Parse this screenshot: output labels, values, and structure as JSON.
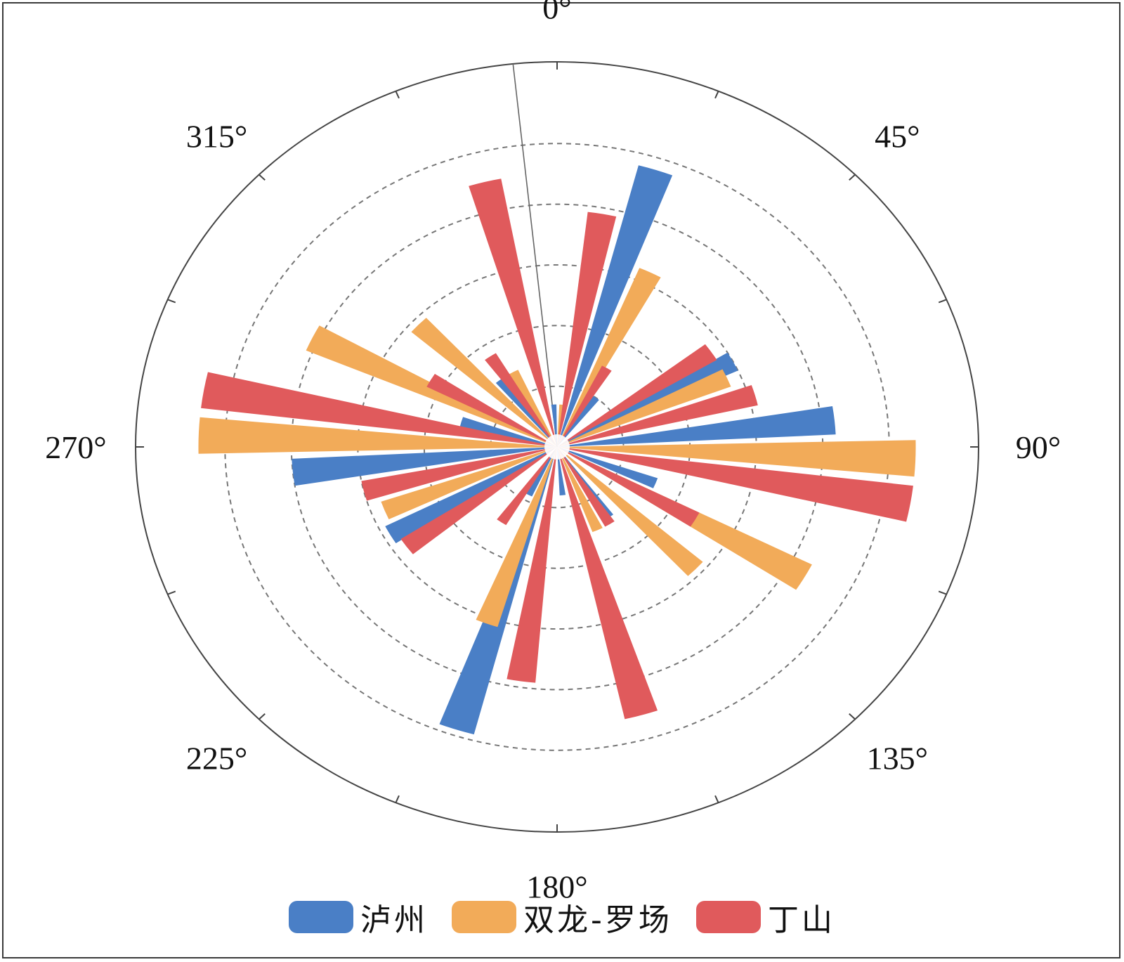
{
  "chart_data": {
    "type": "polar-bar",
    "subtype": "rose-diagram",
    "angle_unit": "degrees",
    "zero_direction": "N",
    "direction": "clockwise",
    "theta_tick_labels": [
      "0°",
      "45°",
      "90°",
      "135°",
      "180°",
      "225°",
      "270°",
      "315°"
    ],
    "theta_tick_values": [
      0,
      45,
      90,
      135,
      180,
      225,
      270,
      315
    ],
    "rmax": 5.5,
    "r_gridlines": [
      1,
      2,
      3,
      4,
      5
    ],
    "grid": true,
    "legend_position": "bottom",
    "series": [
      {
        "name": "泸州",
        "color": "#4a7fc6",
        "bars": [
          {
            "angle": 18,
            "value": 4.8
          },
          {
            "angle": 36,
            "value": 1.0
          },
          {
            "angle": 62,
            "value": 3.0
          },
          {
            "angle": 84,
            "value": 4.2
          },
          {
            "angle": 112,
            "value": 1.6
          },
          {
            "angle": 146,
            "value": 1.4
          },
          {
            "angle": 174,
            "value": 0.8
          },
          {
            "angle": 198,
            "value": 4.9
          },
          {
            "angle": 208,
            "value": 0.9
          },
          {
            "angle": 240,
            "value": 2.9
          },
          {
            "angle": 264,
            "value": 4.0
          },
          {
            "angle": 286,
            "value": 1.5
          },
          {
            "angle": 322,
            "value": 1.4
          },
          {
            "angle": 356,
            "value": 0.7
          }
        ]
      },
      {
        "name": "双龙-罗场",
        "color": "#f2ab59",
        "bars": [
          {
            "angle": 26,
            "value": 3.2
          },
          {
            "angle": 66,
            "value": 2.8
          },
          {
            "angle": 92,
            "value": 5.4
          },
          {
            "angle": 120,
            "value": 4.3
          },
          {
            "angle": 134,
            "value": 2.9
          },
          {
            "angle": 156,
            "value": 1.5
          },
          {
            "angle": 200,
            "value": 3.1
          },
          {
            "angle": 248,
            "value": 2.8
          },
          {
            "angle": 272,
            "value": 5.4
          },
          {
            "angle": 296,
            "value": 4.1
          },
          {
            "angle": 314,
            "value": 2.9
          },
          {
            "angle": 332,
            "value": 1.4
          },
          {
            "angle": 6,
            "value": 0.7
          }
        ]
      },
      {
        "name": "丁山",
        "color": "#e05a5c",
        "bars": [
          {
            "angle": 10,
            "value": 3.9
          },
          {
            "angle": 30,
            "value": 1.5
          },
          {
            "angle": 56,
            "value": 2.8
          },
          {
            "angle": 74,
            "value": 3.1
          },
          {
            "angle": 100,
            "value": 5.4
          },
          {
            "angle": 120,
            "value": 2.4
          },
          {
            "angle": 148,
            "value": 1.5
          },
          {
            "angle": 164,
            "value": 4.6
          },
          {
            "angle": 188,
            "value": 3.9
          },
          {
            "angle": 214,
            "value": 1.5
          },
          {
            "angle": 234,
            "value": 2.8
          },
          {
            "angle": 256,
            "value": 3.0
          },
          {
            "angle": 280,
            "value": 5.4
          },
          {
            "angle": 300,
            "value": 2.2
          },
          {
            "angle": 326,
            "value": 1.8
          },
          {
            "angle": 346,
            "value": 4.5
          }
        ]
      }
    ]
  }
}
